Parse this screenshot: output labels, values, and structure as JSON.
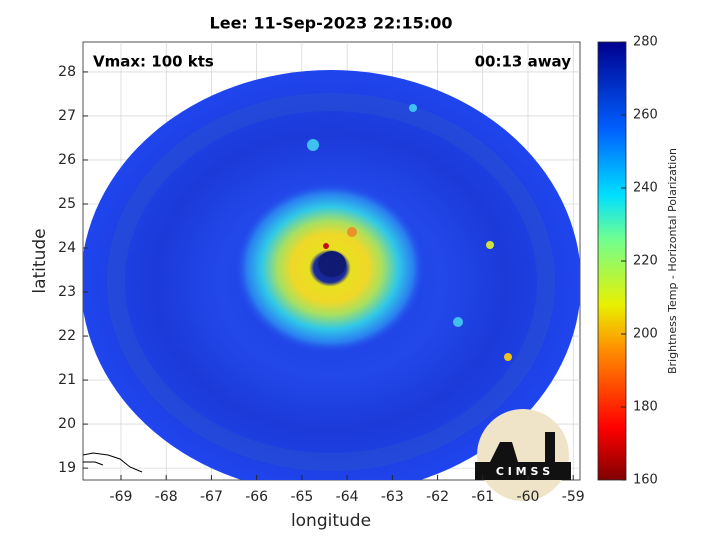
{
  "title": "Lee: 11-Sep-2023 22:15:00",
  "annotations": {
    "left": "Vmax: 100 kts",
    "right": "00:13 away"
  },
  "map": {
    "xlabel": "longitude",
    "ylabel": "latitude",
    "xlim": [
      -69.84,
      -58.85
    ],
    "xticks": [
      -69,
      -68,
      -67,
      -66,
      -65,
      -64,
      -63,
      -62,
      -61,
      -60,
      -59
    ],
    "ylim": [
      18.73,
      28.68
    ],
    "yticks": [
      19,
      20,
      21,
      22,
      23,
      24,
      25,
      26,
      27,
      28
    ],
    "grid": true
  },
  "colorbar": {
    "label": "Brightness Temp - Horizontal Polarization",
    "lim": [
      160,
      280
    ],
    "ticks": [
      160,
      180,
      200,
      220,
      240,
      260,
      280
    ]
  },
  "logo": {
    "text": "C I M S S"
  }
}
